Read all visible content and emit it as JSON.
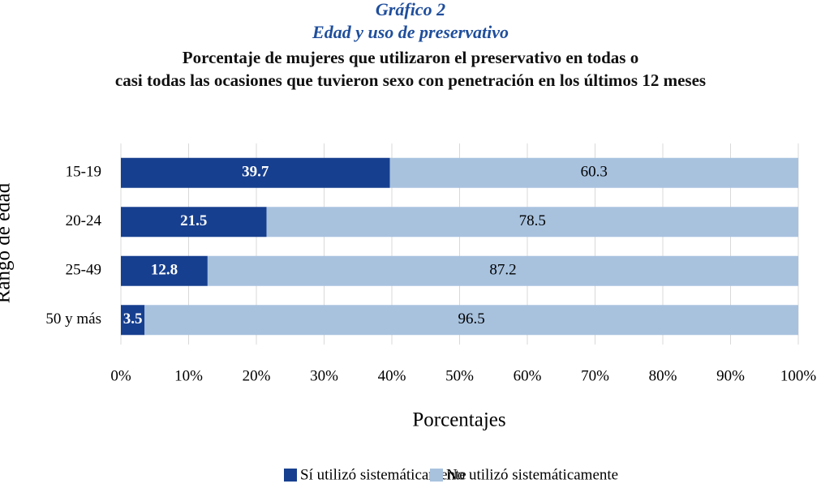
{
  "chart_data": {
    "type": "stacked-bar-horizontal",
    "title": "Gráfico 2",
    "title2": "Edad y uso de preservativo",
    "subtitle": [
      "Porcentaje de mujeres que utilizaron el preservativo en todas o",
      "casi todas las ocasiones que tuvieron sexo con penetración en los últimos 12 meses"
    ],
    "ylabel": "Rango de edad",
    "xlabel": "Porcentajes",
    "categories": [
      "15-19",
      "20-24",
      "25-49",
      "50 y más"
    ],
    "series": [
      {
        "name": "Sí utilizó sistemáticamente",
        "color": "#173f8f",
        "label_color": "#ffffff",
        "values": [
          39.7,
          21.5,
          12.8,
          3.5
        ]
      },
      {
        "name": "No utilizó sistemáticamente",
        "color": "#a8c2de",
        "label_color": "#000000",
        "values": [
          60.3,
          78.5,
          87.2,
          96.5
        ]
      }
    ],
    "xlim": [
      0,
      100
    ],
    "xticks": [
      {
        "value": 0,
        "label": "0%"
      },
      {
        "value": 10,
        "label": "10%"
      },
      {
        "value": 20,
        "label": "20%"
      },
      {
        "value": 30,
        "label": "30%"
      },
      {
        "value": 40,
        "label": "40%"
      },
      {
        "value": 50,
        "label": "50%"
      },
      {
        "value": 60,
        "label": "60%"
      },
      {
        "value": 70,
        "label": "70%"
      },
      {
        "value": 80,
        "label": "80%"
      },
      {
        "value": 90,
        "label": "90%"
      },
      {
        "value": 100,
        "label": "100%"
      }
    ],
    "grid": true,
    "legend": "bottom"
  }
}
